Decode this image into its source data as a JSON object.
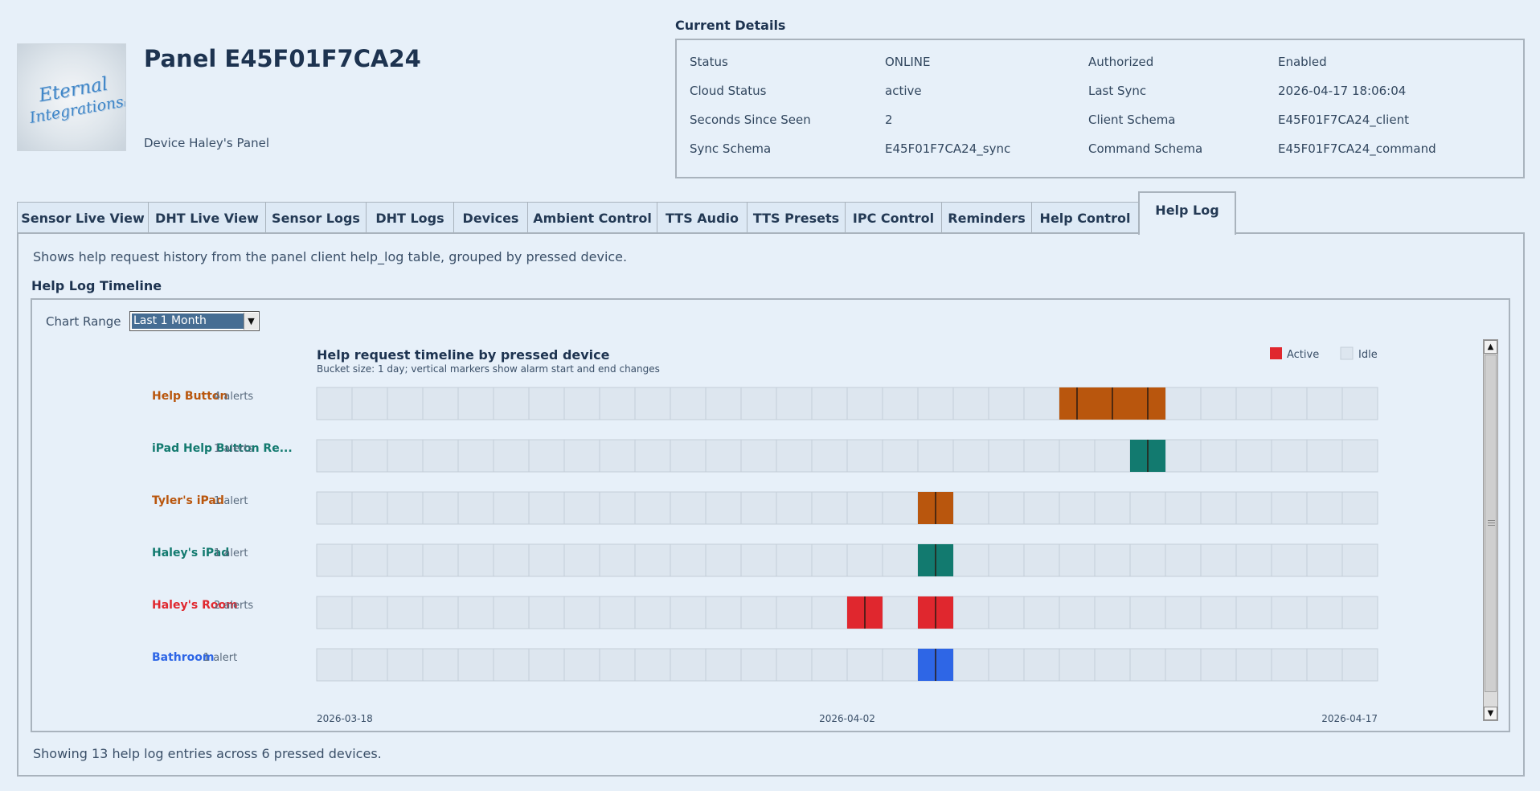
{
  "header": {
    "logo_line1": "Eternal",
    "logo_line2": "Integrations",
    "logo_suffix": "llc",
    "title": "Panel E45F01F7CA24",
    "device_name": "Device Haley's Panel"
  },
  "current_details": {
    "title": "Current Details",
    "rows": [
      {
        "label1": "Status",
        "value1": "ONLINE",
        "label2": "Authorized",
        "value2": "Enabled"
      },
      {
        "label1": "Cloud Status",
        "value1": "active",
        "label2": "Last Sync",
        "value2": "2026-04-17 18:06:04"
      },
      {
        "label1": "Seconds Since Seen",
        "value1": "2",
        "label2": "Client Schema",
        "value2": "E45F01F7CA24_client"
      },
      {
        "label1": "Sync Schema",
        "value1": "E45F01F7CA24_sync",
        "label2": "Command Schema",
        "value2": "E45F01F7CA24_command"
      }
    ]
  },
  "tabs": [
    {
      "label": "Sensor Live View"
    },
    {
      "label": "DHT Live View"
    },
    {
      "label": "Sensor Logs"
    },
    {
      "label": "DHT Logs"
    },
    {
      "label": "Devices"
    },
    {
      "label": "Ambient Control"
    },
    {
      "label": "TTS Audio"
    },
    {
      "label": "TTS Presets"
    },
    {
      "label": "IPC Control"
    },
    {
      "label": "Reminders"
    },
    {
      "label": "Help Control"
    },
    {
      "label": "Help Log",
      "active": true
    }
  ],
  "help_log": {
    "description": "Shows help request history from the panel client help_log table, grouped by pressed device.",
    "section_title": "Help Log Timeline",
    "range_label": "Chart Range",
    "range_value": "Last 1 Month",
    "footer": "Showing 13 help log entries across 6 pressed devices."
  },
  "chart_data": {
    "type": "timeline",
    "title": "Help request timeline by pressed device",
    "subtitle": "Bucket size: 1 day; vertical markers show alarm start and end changes",
    "legend": [
      {
        "label": "Active",
        "color": "#e0272e"
      },
      {
        "label": "Idle",
        "color": "#dde6ef"
      }
    ],
    "legend_position": "top-right",
    "bucket_count": 30,
    "x_ticks": [
      {
        "label": "2026-03-18",
        "bucket": 0
      },
      {
        "label": "2026-04-02",
        "bucket": 15
      },
      {
        "label": "2026-04-17",
        "bucket": 30
      }
    ],
    "series": [
      {
        "name": "Help Button",
        "count_label": "4 alerts",
        "color": "#b9560d",
        "active": [
          [
            21,
            24
          ]
        ],
        "markers": [
          21.5,
          22.5,
          23.5
        ]
      },
      {
        "name": "iPad Help Button Re...",
        "count_label": "1 alerts",
        "color": "#127a6f",
        "active": [
          [
            23,
            24
          ]
        ],
        "markers": [
          23.5
        ]
      },
      {
        "name": "Tyler's iPad",
        "count_label": "1 alert",
        "color": "#b9560d",
        "active": [
          [
            17,
            18
          ]
        ],
        "markers": [
          17.5
        ]
      },
      {
        "name": "Haley's iPad",
        "count_label": "1 alert",
        "color": "#127a6f",
        "active": [
          [
            17,
            18
          ]
        ],
        "markers": [
          17.5
        ]
      },
      {
        "name": "Haley's Room",
        "count_label": "2 alerts",
        "color": "#e0272e",
        "active": [
          [
            15,
            16
          ],
          [
            17,
            18
          ]
        ],
        "markers": [
          15.5,
          17.5
        ]
      },
      {
        "name": "Bathroom",
        "count_label": "1 alert",
        "color": "#2e66e6",
        "active": [
          [
            17,
            18
          ]
        ],
        "markers": [
          17.5
        ]
      }
    ]
  }
}
